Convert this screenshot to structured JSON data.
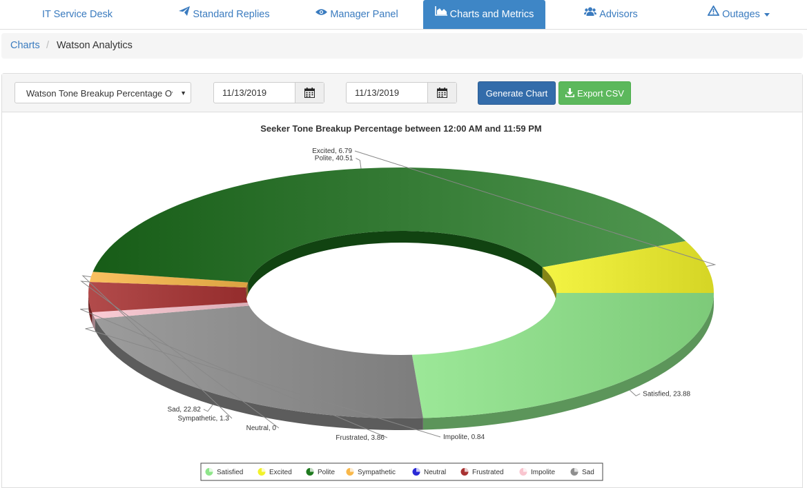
{
  "nav": {
    "items": [
      {
        "label": "IT Service Desk",
        "icon": "none"
      },
      {
        "label": "Standard Replies",
        "icon": "paper-plane-icon"
      },
      {
        "label": "Manager Panel",
        "icon": "eye-icon"
      },
      {
        "label": "Charts and Metrics",
        "icon": "area-chart-icon",
        "active": true
      },
      {
        "label": "Advisors",
        "icon": "users-icon"
      },
      {
        "label": "Outages",
        "icon": "warning-icon",
        "dropdown": true
      }
    ]
  },
  "breadcrumb": {
    "root": "Charts",
    "separator": "/",
    "current": "Watson Analytics"
  },
  "controls": {
    "chart_select": "Watson Tone Breakup Percentage Ov",
    "start_date": "11/13/2019",
    "end_date": "11/13/2019",
    "generate_label": "Generate Chart",
    "export_label": "Export CSV"
  },
  "colors": {
    "accent": "#3e86c6",
    "generate_button": "#336caa",
    "export_button": "#5cb85c"
  },
  "chart_data": {
    "type": "pie",
    "variant": "3d-donut",
    "title": "Seeker Tone Breakup Percentage between 12:00 AM and 11:59 PM",
    "legend_position": "bottom-center",
    "slices": [
      {
        "name": "Satisfied",
        "value": 23.88,
        "label": "Satisfied, 23.88",
        "color": "#8ee58a"
      },
      {
        "name": "Sad",
        "value": 22.82,
        "label": "Sad, 22.82",
        "color": "#8e8e8e"
      },
      {
        "name": "Impolite",
        "value": 0.84,
        "label": "Impolite, 0.84",
        "color": "#f9c5cf"
      },
      {
        "name": "Frustrated",
        "value": 3.86,
        "label": "Frustrated, 3.86",
        "color": "#a83232"
      },
      {
        "name": "Neutral",
        "value": 0,
        "label": "Neutral, 0",
        "color": "#2a2ad6"
      },
      {
        "name": "Sympathetic",
        "value": 1.3,
        "label": "Sympathetic, 1.3",
        "color": "#f9b84a"
      },
      {
        "name": "Polite",
        "value": 40.51,
        "label": "Polite, 40.51",
        "color": "#1f7a1f"
      },
      {
        "name": "Excited",
        "value": 6.79,
        "label": "Excited, 6.79",
        "color": "#f2f22a"
      }
    ],
    "legend": [
      "Satisfied",
      "Excited",
      "Polite",
      "Sympathetic",
      "Neutral",
      "Frustrated",
      "Impolite",
      "Sad"
    ]
  }
}
